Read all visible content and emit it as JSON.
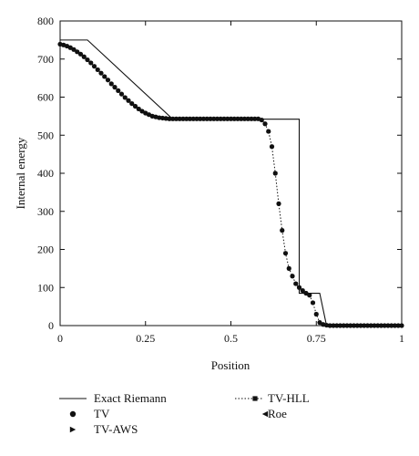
{
  "chart_data": {
    "type": "line",
    "title": "",
    "xlabel": "Position",
    "ylabel": "Internal energy",
    "xlim": [
      0,
      1
    ],
    "ylim": [
      0,
      800
    ],
    "x_ticks": [
      0,
      0.25,
      0.5,
      0.75,
      1
    ],
    "x_tick_labels": [
      "0",
      "0.25",
      "0.5",
      "0.75",
      "1"
    ],
    "y_ticks": [
      0,
      100,
      200,
      300,
      400,
      500,
      600,
      700,
      800
    ],
    "y_tick_labels": [
      "0",
      "100",
      "200",
      "300",
      "400",
      "500",
      "600",
      "700",
      "800"
    ],
    "grid": false,
    "legend_position": "bottom",
    "series": [
      {
        "name": "Exact Riemann",
        "style": "line",
        "color": "#111111",
        "x": [
          0,
          0.08,
          0.33,
          0.7,
          0.7,
          0.76,
          0.78,
          0.78,
          1.0
        ],
        "y": [
          750,
          750,
          542,
          542,
          85,
          85,
          0,
          0,
          0
        ]
      },
      {
        "name": "TV",
        "style": "circle",
        "color": "#111111",
        "x": [
          0.0,
          0.01,
          0.02,
          0.03,
          0.04,
          0.05,
          0.06,
          0.07,
          0.08,
          0.09,
          0.1,
          0.11,
          0.12,
          0.13,
          0.14,
          0.15,
          0.16,
          0.17,
          0.18,
          0.19,
          0.2,
          0.21,
          0.22,
          0.23,
          0.24,
          0.25,
          0.26,
          0.27,
          0.28,
          0.29,
          0.3,
          0.31,
          0.32,
          0.33,
          0.34,
          0.35,
          0.36,
          0.37,
          0.38,
          0.39,
          0.4,
          0.41,
          0.42,
          0.43,
          0.44,
          0.45,
          0.46,
          0.47,
          0.48,
          0.49,
          0.5,
          0.51,
          0.52,
          0.53,
          0.54,
          0.55,
          0.56,
          0.57,
          0.58,
          0.59,
          0.6,
          0.61,
          0.62,
          0.63,
          0.64,
          0.65,
          0.66,
          0.67,
          0.68,
          0.69,
          0.7,
          0.71,
          0.72,
          0.73,
          0.74,
          0.75,
          0.76,
          0.77,
          0.78,
          0.79,
          0.8,
          0.81,
          0.82,
          0.83,
          0.84,
          0.85,
          0.86,
          0.87,
          0.88,
          0.89,
          0.9,
          0.91,
          0.92,
          0.93,
          0.94,
          0.95,
          0.96,
          0.97,
          0.98,
          0.99,
          1.0
        ],
        "y": [
          739,
          737,
          734,
          730,
          725,
          719,
          713,
          706,
          698,
          690,
          681,
          672,
          663,
          654,
          645,
          635,
          626,
          617,
          608,
          599,
          591,
          583,
          576,
          569,
          563,
          558,
          554,
          550,
          548,
          546,
          545,
          544,
          543,
          543,
          543,
          543,
          543,
          543,
          543,
          543,
          543,
          543,
          543,
          543,
          543,
          543,
          543,
          543,
          543,
          543,
          543,
          543,
          543,
          543,
          543,
          543,
          543,
          543,
          543,
          540,
          530,
          510,
          470,
          400,
          320,
          250,
          190,
          150,
          130,
          110,
          100,
          92,
          85,
          80,
          60,
          30,
          8,
          3,
          1,
          0,
          0,
          0,
          0,
          0,
          0,
          0,
          0,
          0,
          0,
          0,
          0,
          0,
          0,
          0,
          0,
          0,
          0,
          0,
          0,
          0,
          0
        ]
      },
      {
        "name": "TV-AWS",
        "style": "triangle-right",
        "color": "#111111",
        "x": [
          0.0,
          0.01,
          0.02,
          0.03,
          0.04,
          0.05,
          0.06,
          0.07,
          0.08,
          0.09,
          0.1,
          0.11,
          0.12,
          0.13,
          0.14,
          0.15,
          0.16,
          0.17,
          0.18,
          0.19,
          0.2,
          0.21,
          0.22,
          0.23,
          0.24,
          0.25,
          0.26,
          0.27,
          0.28,
          0.29,
          0.3,
          0.31,
          0.32,
          0.33,
          0.34,
          0.35,
          0.36,
          0.37,
          0.38,
          0.39,
          0.4,
          0.41,
          0.42,
          0.43,
          0.44,
          0.45,
          0.46,
          0.47,
          0.48,
          0.49,
          0.5,
          0.51,
          0.52,
          0.53,
          0.54,
          0.55,
          0.56,
          0.57,
          0.58,
          0.59,
          0.6,
          0.61,
          0.62,
          0.63,
          0.64,
          0.65,
          0.66,
          0.67,
          0.68,
          0.69,
          0.7,
          0.71,
          0.72,
          0.73,
          0.74,
          0.75,
          0.76,
          0.77,
          0.78,
          0.79,
          0.8,
          0.81,
          0.82,
          0.83,
          0.84,
          0.85,
          0.86,
          0.87,
          0.88,
          0.89,
          0.9,
          0.91,
          0.92,
          0.93,
          0.94,
          0.95,
          0.96,
          0.97,
          0.98,
          0.99,
          1.0
        ],
        "y": [
          739,
          737,
          734,
          730,
          725,
          719,
          713,
          706,
          698,
          690,
          681,
          672,
          663,
          654,
          645,
          635,
          626,
          617,
          608,
          599,
          591,
          583,
          576,
          569,
          563,
          558,
          554,
          550,
          548,
          546,
          545,
          544,
          543,
          543,
          543,
          543,
          543,
          543,
          543,
          543,
          543,
          543,
          543,
          543,
          543,
          543,
          543,
          543,
          543,
          543,
          543,
          543,
          543,
          543,
          543,
          543,
          543,
          543,
          543,
          540,
          530,
          510,
          470,
          400,
          320,
          250,
          190,
          150,
          130,
          110,
          100,
          92,
          85,
          80,
          60,
          30,
          8,
          3,
          1,
          0,
          0,
          0,
          0,
          0,
          0,
          0,
          0,
          0,
          0,
          0,
          0,
          0,
          0,
          0,
          0,
          0,
          0,
          0,
          0,
          0,
          0
        ]
      },
      {
        "name": "TV-HLL",
        "style": "dotted-square",
        "color": "#111111",
        "x": [
          0.0,
          0.01,
          0.02,
          0.03,
          0.04,
          0.05,
          0.06,
          0.07,
          0.08,
          0.09,
          0.1,
          0.11,
          0.12,
          0.13,
          0.14,
          0.15,
          0.16,
          0.17,
          0.18,
          0.19,
          0.2,
          0.21,
          0.22,
          0.23,
          0.24,
          0.25,
          0.26,
          0.27,
          0.28,
          0.29,
          0.3,
          0.31,
          0.32,
          0.33,
          0.34,
          0.35,
          0.36,
          0.37,
          0.38,
          0.39,
          0.4,
          0.41,
          0.42,
          0.43,
          0.44,
          0.45,
          0.46,
          0.47,
          0.48,
          0.49,
          0.5,
          0.51,
          0.52,
          0.53,
          0.54,
          0.55,
          0.56,
          0.57,
          0.58,
          0.59,
          0.6,
          0.61,
          0.62,
          0.63,
          0.64,
          0.65,
          0.66,
          0.67,
          0.68,
          0.69,
          0.7,
          0.71,
          0.72,
          0.73,
          0.74,
          0.75,
          0.76,
          0.77,
          0.78,
          0.79,
          0.8,
          0.81,
          0.82,
          0.83,
          0.84,
          0.85,
          0.86,
          0.87,
          0.88,
          0.89,
          0.9,
          0.91,
          0.92,
          0.93,
          0.94,
          0.95,
          0.96,
          0.97,
          0.98,
          0.99,
          1.0
        ],
        "y": [
          739,
          737,
          734,
          730,
          725,
          719,
          713,
          706,
          698,
          690,
          681,
          672,
          663,
          654,
          645,
          635,
          626,
          617,
          608,
          599,
          591,
          583,
          576,
          569,
          563,
          558,
          554,
          550,
          548,
          546,
          545,
          544,
          543,
          543,
          543,
          543,
          543,
          543,
          543,
          543,
          543,
          543,
          543,
          543,
          543,
          543,
          543,
          543,
          543,
          543,
          543,
          543,
          543,
          543,
          543,
          543,
          543,
          543,
          543,
          540,
          530,
          510,
          470,
          400,
          320,
          250,
          190,
          150,
          130,
          110,
          100,
          92,
          85,
          80,
          60,
          30,
          8,
          3,
          1,
          0,
          0,
          0,
          0,
          0,
          0,
          0,
          0,
          0,
          0,
          0,
          0,
          0,
          0,
          0,
          0,
          0,
          0,
          0,
          0,
          0,
          0
        ]
      },
      {
        "name": "Roe",
        "style": "triangle-left",
        "color": "#111111",
        "x": [
          0.0,
          0.01,
          0.02,
          0.03,
          0.04,
          0.05,
          0.06,
          0.07,
          0.08,
          0.09,
          0.1,
          0.11,
          0.12,
          0.13,
          0.14,
          0.15,
          0.16,
          0.17,
          0.18,
          0.19,
          0.2,
          0.21,
          0.22,
          0.23,
          0.24,
          0.25,
          0.26,
          0.27,
          0.28,
          0.29,
          0.3,
          0.31,
          0.32,
          0.33,
          0.34,
          0.35,
          0.36,
          0.37,
          0.38,
          0.39,
          0.4,
          0.41,
          0.42,
          0.43,
          0.44,
          0.45,
          0.46,
          0.47,
          0.48,
          0.49,
          0.5,
          0.51,
          0.52,
          0.53,
          0.54,
          0.55,
          0.56,
          0.57,
          0.58,
          0.59,
          0.6,
          0.61,
          0.62,
          0.63,
          0.64,
          0.65,
          0.66,
          0.67,
          0.68,
          0.69,
          0.7,
          0.71,
          0.72,
          0.73,
          0.74,
          0.75,
          0.76,
          0.77,
          0.78,
          0.79,
          0.8,
          0.81,
          0.82,
          0.83,
          0.84,
          0.85,
          0.86,
          0.87,
          0.88,
          0.89,
          0.9,
          0.91,
          0.92,
          0.93,
          0.94,
          0.95,
          0.96,
          0.97,
          0.98,
          0.99,
          1.0
        ],
        "y": [
          739,
          737,
          734,
          730,
          725,
          719,
          713,
          706,
          698,
          690,
          681,
          672,
          663,
          654,
          645,
          635,
          626,
          617,
          608,
          599,
          591,
          583,
          576,
          569,
          563,
          558,
          554,
          550,
          548,
          546,
          545,
          544,
          543,
          543,
          543,
          543,
          543,
          543,
          543,
          543,
          543,
          543,
          543,
          543,
          543,
          543,
          543,
          543,
          543,
          543,
          543,
          543,
          543,
          543,
          543,
          543,
          543,
          543,
          543,
          540,
          530,
          510,
          470,
          400,
          320,
          250,
          190,
          150,
          130,
          110,
          100,
          92,
          85,
          80,
          60,
          30,
          8,
          3,
          1,
          0,
          0,
          0,
          0,
          0,
          0,
          0,
          0,
          0,
          0,
          0,
          0,
          0,
          0,
          0,
          0,
          0,
          0,
          0,
          0,
          0,
          0
        ]
      }
    ]
  }
}
